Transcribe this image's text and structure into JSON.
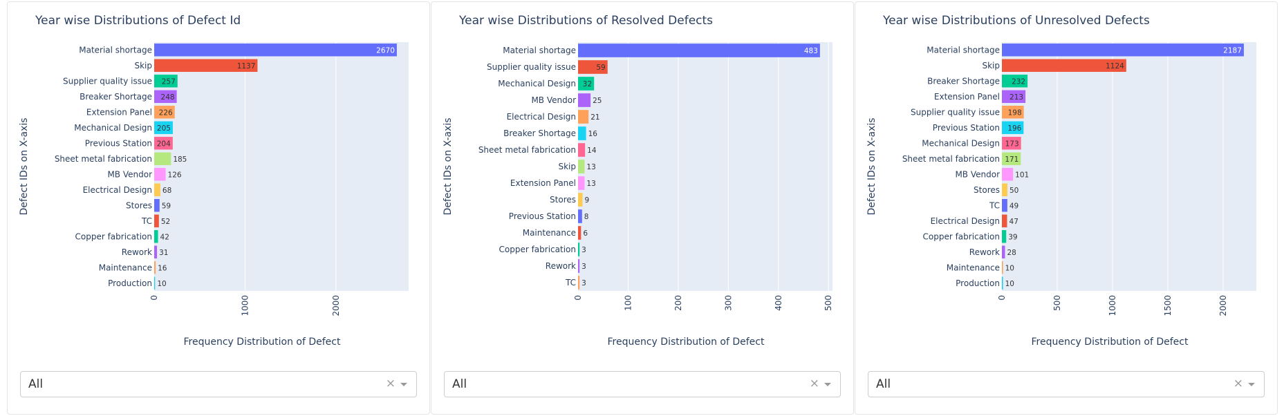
{
  "colors": [
    "#636efa",
    "#ef553b",
    "#00cc96",
    "#ab63fa",
    "#ffa15a",
    "#19d3f3",
    "#ff6692",
    "#b6e880",
    "#ff97ff",
    "#fecb52"
  ],
  "panels": [
    {
      "dropdown": {
        "value": "All",
        "clear": "×"
      },
      "chart_data": {
        "type": "bar",
        "orientation": "horizontal",
        "title": "Year wise Distributions of Defect Id",
        "xlabel": "Frequency Distribution of Defect",
        "ylabel": "Defect IDs on X-axis",
        "xlim": [
          0,
          2800
        ],
        "xticks": [
          0,
          1000,
          2000
        ],
        "grid": true,
        "categories": [
          "Material shortage",
          "Skip",
          "Supplier quality issue",
          "Breaker Shortage",
          "Extension Panel",
          "Mechanical Design",
          "Previous Station",
          "Sheet metal fabrication",
          "MB Vendor",
          "Electrical Design",
          "Stores",
          "TC",
          "Copper fabrication",
          "Rework",
          "Maintenance",
          "Production"
        ],
        "values": [
          2670,
          1137,
          257,
          248,
          226,
          205,
          204,
          185,
          126,
          68,
          59,
          52,
          42,
          31,
          16,
          10
        ]
      }
    },
    {
      "dropdown": {
        "value": "All",
        "clear": "×"
      },
      "chart_data": {
        "type": "bar",
        "orientation": "horizontal",
        "title": "Year wise Distributions of Resolved Defects",
        "xlabel": "Frequency Distribution of Defect",
        "ylabel": "Defect IDs on X-axis",
        "xlim": [
          0,
          508
        ],
        "xticks": [
          0,
          100,
          200,
          300,
          400,
          500
        ],
        "grid": true,
        "categories": [
          "Material shortage",
          "Supplier quality issue",
          "Mechanical Design",
          "MB Vendor",
          "Electrical Design",
          "Breaker Shortage",
          "Sheet metal fabrication",
          "Skip",
          "Extension Panel",
          "Stores",
          "Previous Station",
          "Maintenance",
          "Copper fabrication",
          "Rework",
          "TC"
        ],
        "values": [
          483,
          59,
          32,
          25,
          21,
          16,
          14,
          13,
          13,
          9,
          8,
          6,
          3,
          3,
          3
        ]
      }
    },
    {
      "dropdown": {
        "value": "All",
        "clear": "×"
      },
      "chart_data": {
        "type": "bar",
        "orientation": "horizontal",
        "title": "Year wise Distributions of Unresolved Defects",
        "xlabel": "Frequency Distribution of Defect",
        "ylabel": "Defect IDs on X-axis",
        "xlim": [
          0,
          2300
        ],
        "xticks": [
          0,
          500,
          1000,
          1500,
          2000
        ],
        "grid": true,
        "categories": [
          "Material shortage",
          "Skip",
          "Breaker Shortage",
          "Extension Panel",
          "Supplier quality issue",
          "Previous Station",
          "Mechanical Design",
          "Sheet metal fabrication",
          "MB Vendor",
          "Stores",
          "TC",
          "Electrical Design",
          "Copper fabrication",
          "Rework",
          "Maintenance",
          "Production"
        ],
        "values": [
          2187,
          1124,
          232,
          213,
          198,
          196,
          173,
          171,
          101,
          50,
          49,
          47,
          39,
          28,
          10,
          10
        ]
      }
    }
  ]
}
